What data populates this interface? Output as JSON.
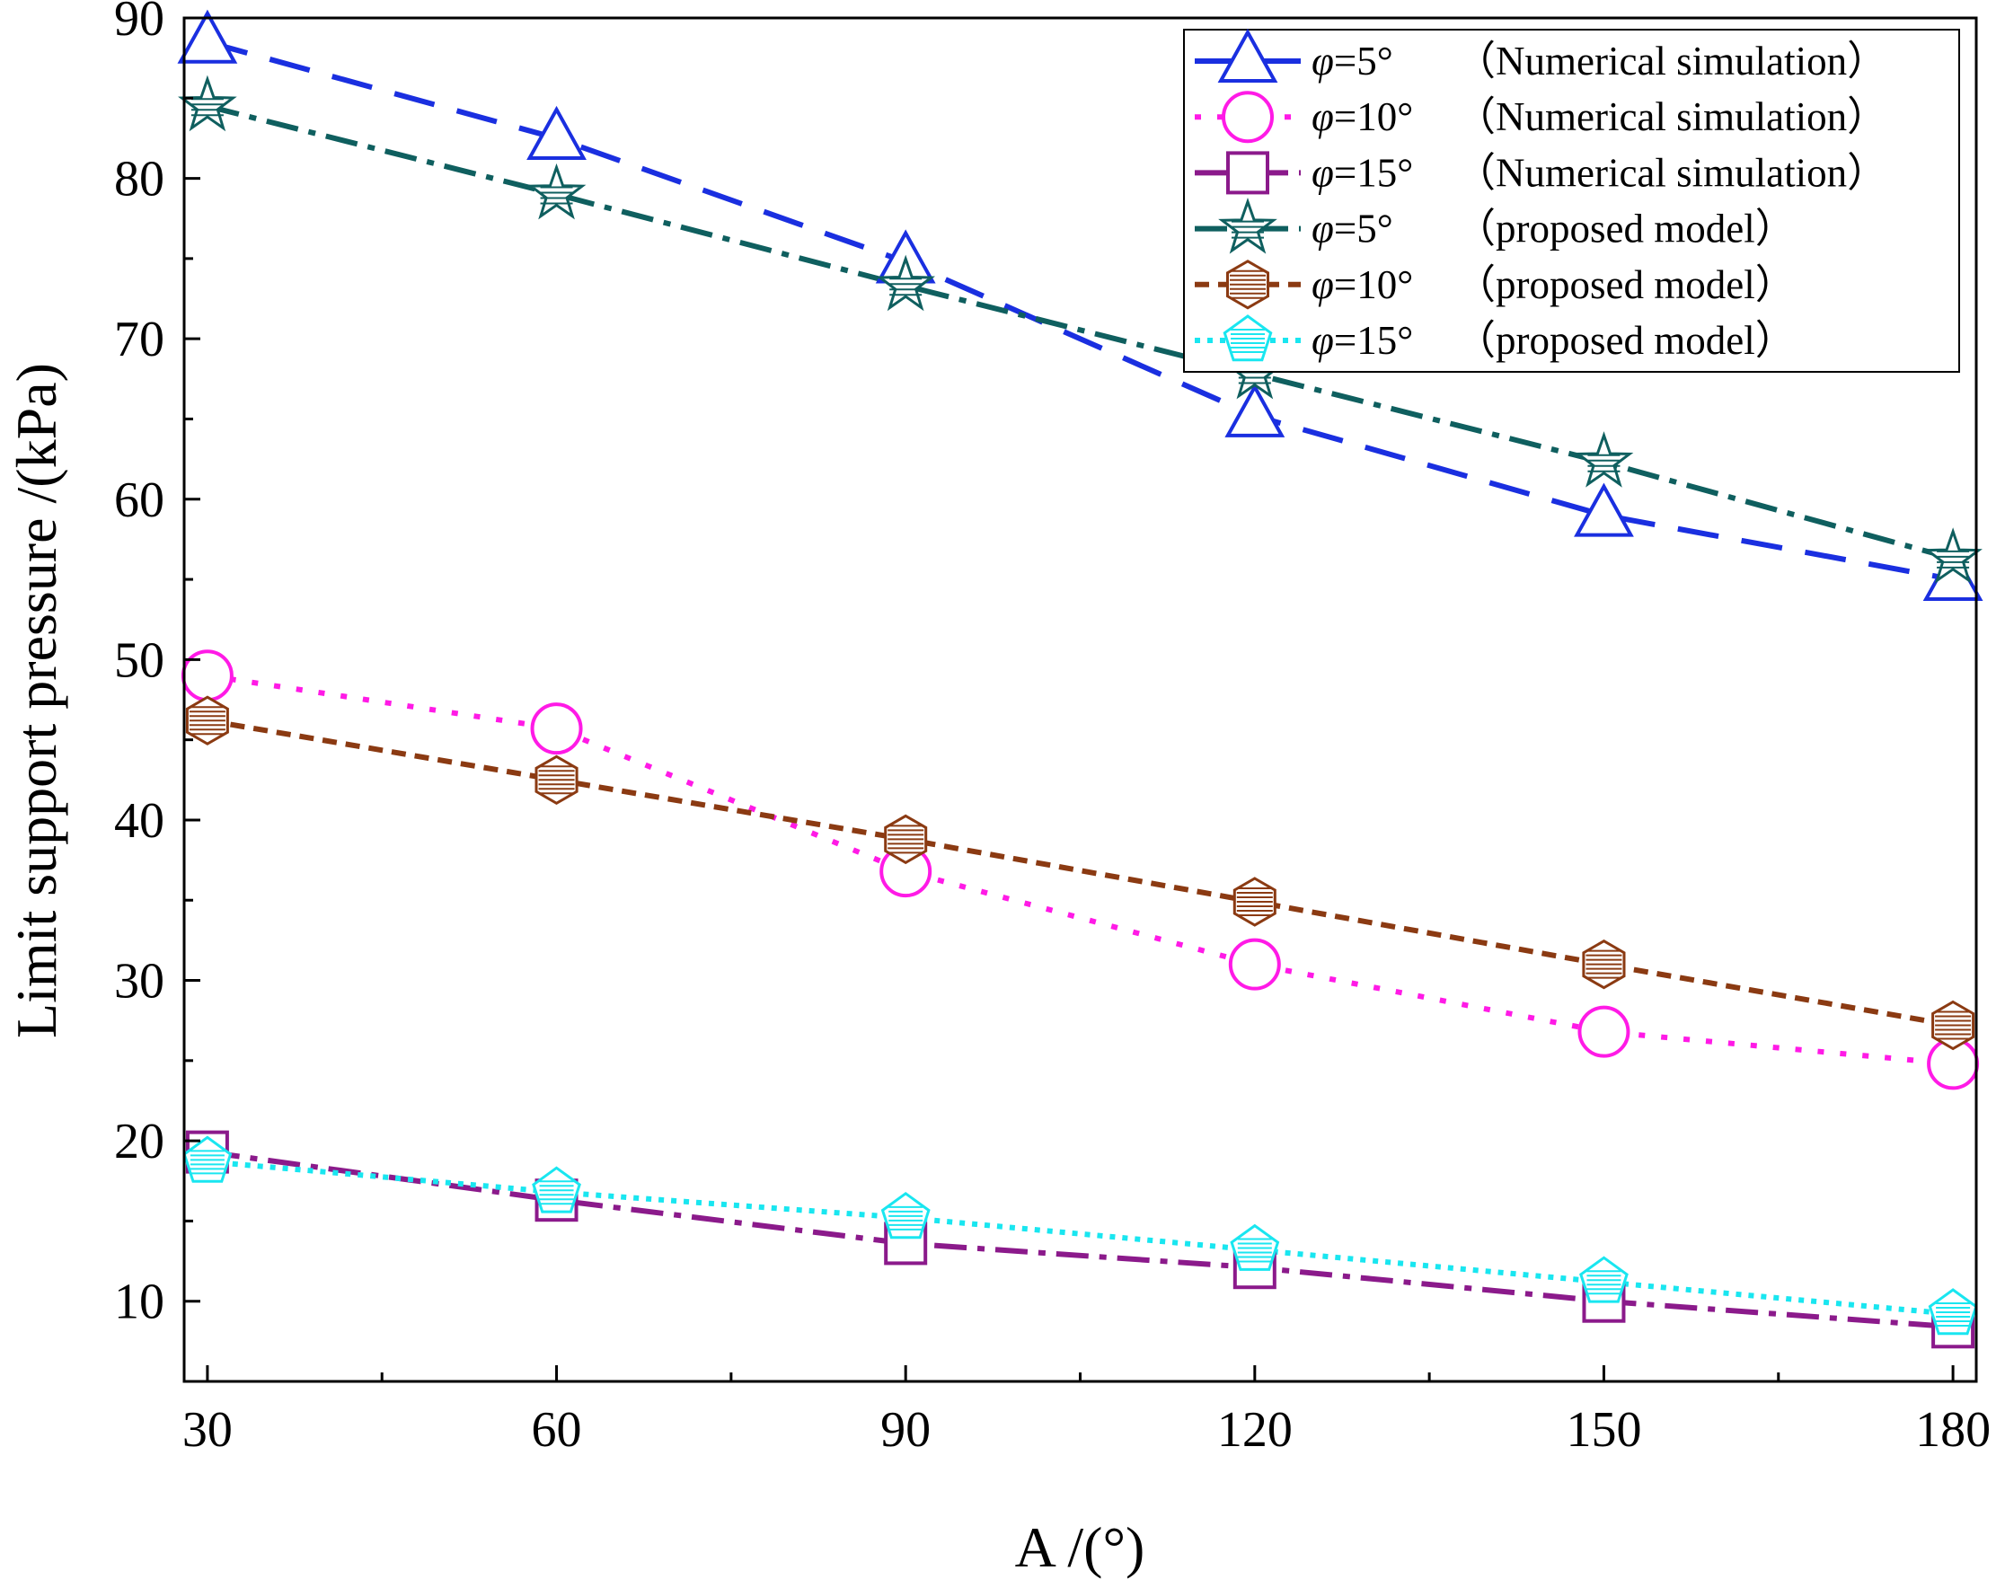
{
  "chart_data": {
    "type": "line",
    "title": "",
    "xlabel": "A /(°)",
    "ylabel": "Limit support pressure /(kPa)",
    "x": [
      30,
      60,
      90,
      120,
      150,
      180
    ],
    "xlim": [
      28,
      182
    ],
    "ylim": [
      5,
      90
    ],
    "xticks": [
      30,
      60,
      90,
      120,
      150,
      180
    ],
    "yticks": [
      10,
      20,
      30,
      40,
      50,
      60,
      70,
      80,
      90
    ],
    "xtick_labels": [
      "30",
      "60",
      "90",
      "120",
      "150",
      "180"
    ],
    "ytick_labels": [
      "10",
      "20",
      "30",
      "40",
      "50",
      "60",
      "70",
      "80",
      "90"
    ],
    "grid": false,
    "legend_position": "top-right",
    "series": [
      {
        "name": "φ=5°（Numerical simulation）",
        "phi_symbol": "φ",
        "phi_rest": "=5°",
        "desc": "（Numerical simulation）",
        "values": [
          88.5,
          82.5,
          74.8,
          65.2,
          59.0,
          55.0
        ],
        "color": "#1a2fe0",
        "marker": "triangle",
        "dash": "46 26"
      },
      {
        "name": "φ=10°（Numerical simulation）",
        "phi_symbol": "φ",
        "phi_rest": "=10°",
        "desc": "（Numerical simulation）",
        "values": [
          49.0,
          45.7,
          36.8,
          31.0,
          26.8,
          24.8
        ],
        "color": "#ff1ae6",
        "marker": "circle",
        "dash": "7 18"
      },
      {
        "name": "φ=15°（Numerical simulation）",
        "phi_symbol": "φ",
        "phi_rest": "=15°",
        "desc": "（Numerical simulation）",
        "values": [
          19.3,
          16.3,
          13.6,
          12.1,
          10.0,
          8.4
        ],
        "color": "#8b1a8b",
        "marker": "square",
        "dash": "36 12 8 12"
      },
      {
        "name": "φ=5°（proposed model）",
        "phi_symbol": "φ",
        "phi_rest": "=5°",
        "desc": "（proposed model）",
        "values": [
          84.5,
          79.0,
          73.3,
          67.8,
          62.3,
          56.3
        ],
        "color": "#0f5f5f",
        "marker": "star",
        "dash": "36 12 8 12"
      },
      {
        "name": "φ=10°（proposed model）",
        "phi_symbol": "φ",
        "phi_rest": "=10°",
        "desc": "（proposed model）",
        "values": [
          46.2,
          42.5,
          38.8,
          34.9,
          31.0,
          27.2
        ],
        "color": "#8b3a12",
        "marker": "hexagon",
        "dash": "16 10"
      },
      {
        "name": "φ=15°（proposed model）",
        "phi_symbol": "φ",
        "phi_rest": "=15°",
        "desc": "（proposed model）",
        "values": [
          18.7,
          16.8,
          15.2,
          13.2,
          11.2,
          9.2
        ],
        "color": "#19e6f0",
        "marker": "pentagon",
        "dash": "6 8"
      }
    ]
  }
}
